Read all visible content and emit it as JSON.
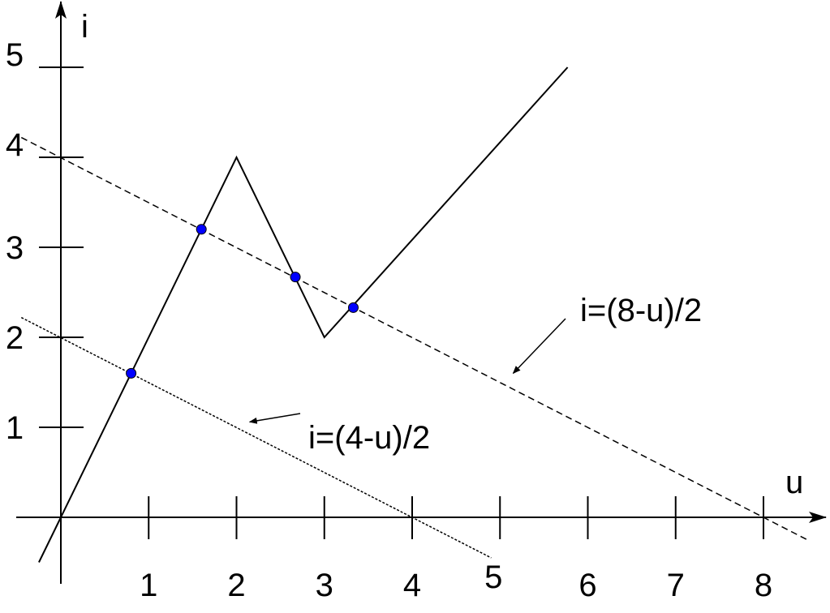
{
  "chart_data": {
    "type": "line",
    "xlabel": "u",
    "ylabel": "i",
    "xlim": [
      -0.5,
      8.8
    ],
    "ylim": [
      -0.5,
      5.3
    ],
    "grid": false,
    "x_ticks": [
      "1",
      "2",
      "3",
      "4",
      "5",
      "6",
      "7",
      "8"
    ],
    "y_ticks": [
      "1",
      "2",
      "3",
      "4",
      "5"
    ],
    "series": [
      {
        "style": "solid",
        "points": [
          [
            -0.25,
            -0.5
          ],
          [
            0,
            0
          ],
          [
            2,
            4
          ],
          [
            3,
            2
          ],
          [
            5.77,
            5
          ]
        ]
      },
      {
        "name": "i=(8-u)/2",
        "style": "dashed",
        "points": [
          [
            -0.45,
            4.22
          ],
          [
            8.5,
            -0.25
          ]
        ]
      },
      {
        "name": "i=(4-u)/2",
        "style": "dotted",
        "points": [
          [
            -0.45,
            2.22
          ],
          [
            4.9,
            -0.45
          ]
        ]
      }
    ],
    "intersections": [
      [
        0.8,
        1.6
      ],
      [
        1.6,
        3.2
      ],
      [
        2.67,
        2.67
      ],
      [
        3.33,
        2.33
      ]
    ],
    "annotations": [
      {
        "text": "i=(8-u)/2",
        "arrow_to": [
          5.15,
          1.6
        ]
      },
      {
        "text": "i=(4-u)/2",
        "arrow_to": [
          2.15,
          1.06
        ]
      }
    ],
    "colors": {
      "line": "#000000",
      "point": "#0000ff"
    }
  }
}
